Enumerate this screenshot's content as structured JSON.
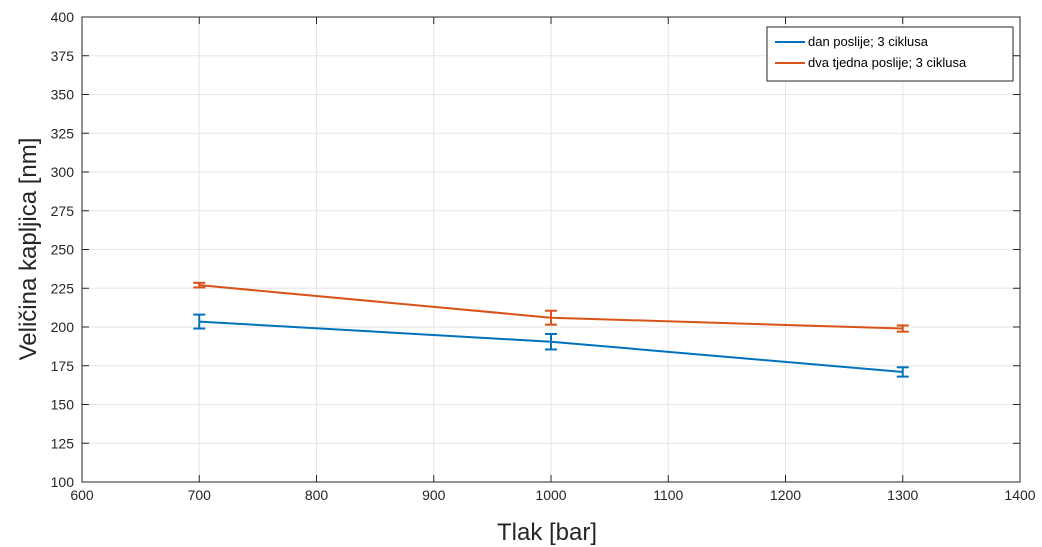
{
  "chart_data": {
    "type": "line",
    "title": "",
    "xlabel": "Tlak [bar]",
    "ylabel": "Veličina kapljica [nm]",
    "xlim": [
      600,
      1400
    ],
    "ylim": [
      100,
      400
    ],
    "xticks": [
      600,
      700,
      800,
      900,
      1000,
      1100,
      1200,
      1300,
      1400
    ],
    "yticks": [
      100,
      125,
      150,
      175,
      200,
      225,
      250,
      275,
      300,
      325,
      350,
      375,
      400
    ],
    "grid": true,
    "legend_position": "top-right",
    "series": [
      {
        "name": "dan poslije; 3 ciklusa",
        "color": "#0072BD",
        "x": [
          700,
          1000,
          1300
        ],
        "y": [
          203.5,
          190.5,
          171
        ],
        "err": [
          4.5,
          5,
          3
        ]
      },
      {
        "name": "dva tjedna poslije; 3 ciklusa",
        "color": "#D95319",
        "x": [
          700,
          1000,
          1300
        ],
        "y": [
          227,
          206,
          199
        ],
        "err": [
          1.5,
          4.5,
          2
        ]
      }
    ]
  }
}
